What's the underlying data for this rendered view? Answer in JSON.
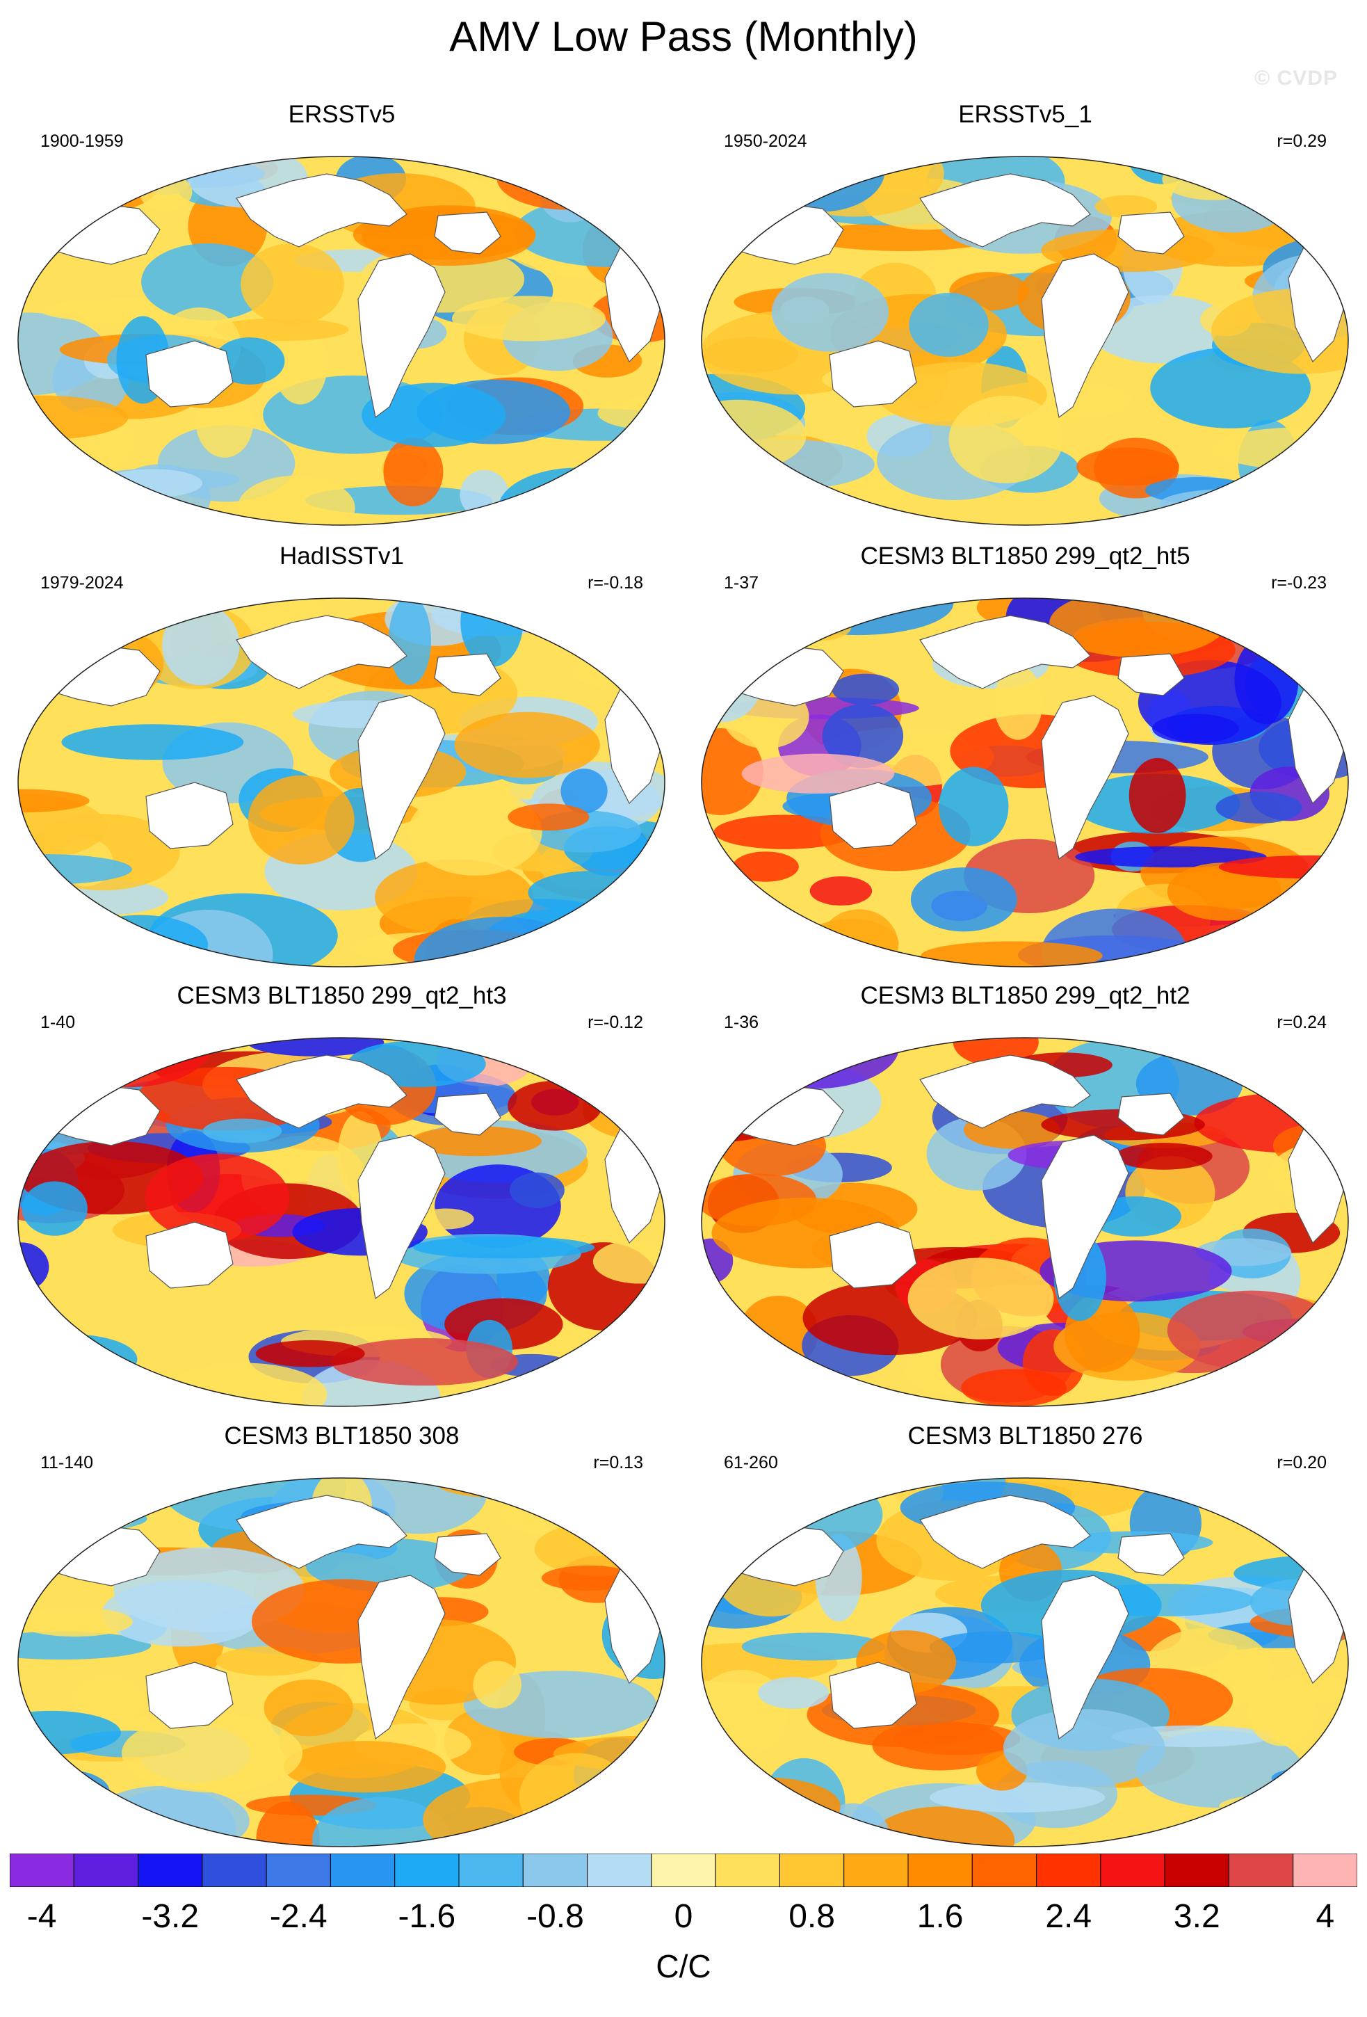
{
  "title": "AMV Low Pass (Monthly)",
  "watermark": "© CVDP",
  "colorbar": {
    "units": "C/C",
    "tick_labels": [
      "-4",
      "-3.2",
      "-2.4",
      "-1.6",
      "-0.8",
      "0",
      "0.8",
      "1.6",
      "2.4",
      "3.2",
      "4"
    ],
    "levels": [
      -4,
      -3.6,
      -3.2,
      -2.8,
      -2.4,
      -2,
      -1.6,
      -1.2,
      -0.8,
      -0.4,
      0,
      0.4,
      0.8,
      1.2,
      1.6,
      2,
      2.4,
      2.8,
      3.2,
      3.6,
      4
    ],
    "colors": [
      "#8a2be2",
      "#5f1fe0",
      "#1414f5",
      "#2e50dc",
      "#3c78e6",
      "#2896f0",
      "#1eaaf5",
      "#4bb9f0",
      "#8cc8ec",
      "#b4dcf5",
      "#fff5aa",
      "#ffe05a",
      "#ffc832",
      "#ffaa14",
      "#ff8c00",
      "#ff6400",
      "#ff3200",
      "#f51414",
      "#c80000",
      "#dc4646",
      "#ffb4b4"
    ]
  },
  "panels": [
    {
      "title": "ERSSTv5",
      "period": "1900-1959",
      "r": ""
    },
    {
      "title": "ERSSTv5_1",
      "period": "1950-2024",
      "r": "r=0.29"
    },
    {
      "title": "HadISSTv1",
      "period": "1979-2024",
      "r": "r=-0.18"
    },
    {
      "title": "CESM3 BLT1850 299_qt2_ht5",
      "period": "1-37",
      "r": "r=-0.23"
    },
    {
      "title": "CESM3 BLT1850 299_qt2_ht3",
      "period": "1-40",
      "r": "r=-0.12"
    },
    {
      "title": "CESM3 BLT1850 299_qt2_ht2",
      "period": "1-36",
      "r": "r=0.24"
    },
    {
      "title": "CESM3 BLT1850 308",
      "period": "11-140",
      "r": "r=0.13"
    },
    {
      "title": "CESM3 BLT1850 276",
      "period": "61-260",
      "r": "r=0.20"
    }
  ]
}
